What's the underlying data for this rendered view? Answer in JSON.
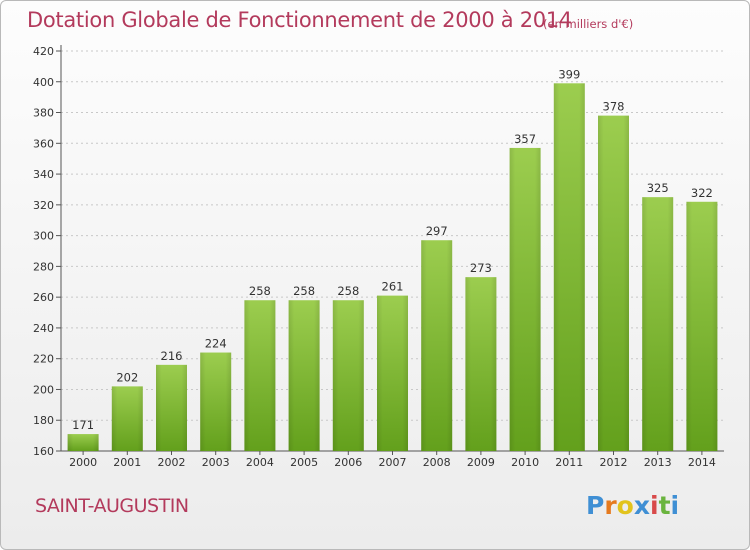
{
  "header": {
    "title": "Dotation Globale de Fonctionnement de 2000 à 2014",
    "unit": "(en milliers d'€)"
  },
  "footer": {
    "town": "SAINT-AUGUSTIN",
    "logo": [
      "P",
      "r",
      "o",
      "x",
      "i",
      "t",
      "i"
    ]
  },
  "colors": {
    "title": "#b33a5c",
    "bar_light": "#9ccd4f",
    "bar_dark": "#63a01c"
  },
  "chart_data": {
    "type": "bar",
    "categories": [
      "2000",
      "2001",
      "2002",
      "2003",
      "2004",
      "2005",
      "2006",
      "2007",
      "2008",
      "2009",
      "2010",
      "2011",
      "2012",
      "2013",
      "2014"
    ],
    "values": [
      171,
      202,
      216,
      224,
      258,
      258,
      258,
      261,
      297,
      273,
      357,
      399,
      378,
      325,
      322
    ],
    "data_labels": [
      "171",
      "202",
      "216",
      "224",
      "258",
      "258",
      "258",
      "261",
      "297",
      "273",
      "357",
      "399",
      "378",
      "325",
      "322"
    ],
    "yticks": [
      "160",
      "180",
      "200",
      "220",
      "240",
      "260",
      "280",
      "300",
      "320",
      "340",
      "360",
      "380",
      "400",
      "420"
    ],
    "ylim": [
      160,
      420
    ],
    "grid": true,
    "legend": "none"
  }
}
